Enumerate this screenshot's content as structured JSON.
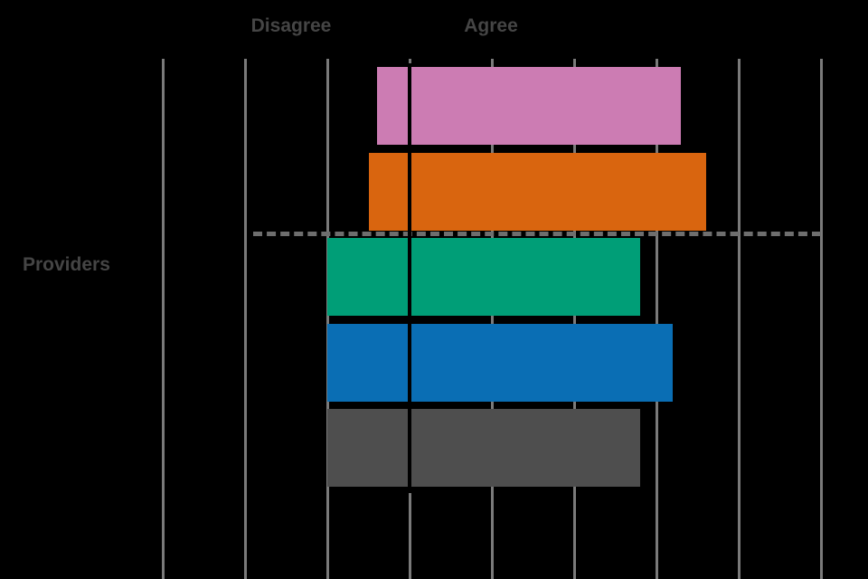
{
  "colors": {
    "background": "#000000",
    "text": "#454545",
    "gridline": "#7A7A7A",
    "zero_line": "#000000",
    "dashed_line": "#6E6E6E"
  },
  "labels": {
    "disagree": "Disagree",
    "agree": "Agree",
    "category": "Providers"
  },
  "chart_data": {
    "type": "bar",
    "orientation": "horizontal",
    "title": "",
    "category_label": "Providers",
    "axis_annotations": [
      "Disagree",
      "Agree"
    ],
    "x_axis": {
      "min": -3,
      "max": 5,
      "gridline_step": 1,
      "zero_line_at": 0,
      "tick_labels_visible": false
    },
    "grid": true,
    "legend": false,
    "bars": [
      {
        "name": "row-1-pink",
        "color": "#CC7CB3",
        "min": -0.4,
        "max": 3.3
      },
      {
        "name": "row-2-orange",
        "color": "#D9650F",
        "min": -0.5,
        "max": 3.6
      },
      {
        "name": "row-3-green",
        "color": "#009E77",
        "min": -1.0,
        "max": 2.8
      },
      {
        "name": "row-4-blue",
        "color": "#0A6EB4",
        "min": -1.0,
        "max": 3.2
      },
      {
        "name": "row-5-gray",
        "color": "#4E4E4E",
        "min": -1.0,
        "max": 2.8
      }
    ],
    "separator_dashed_line": {
      "after_bar_index": 1,
      "x_min": -1.9,
      "x_max": 5.0
    }
  }
}
